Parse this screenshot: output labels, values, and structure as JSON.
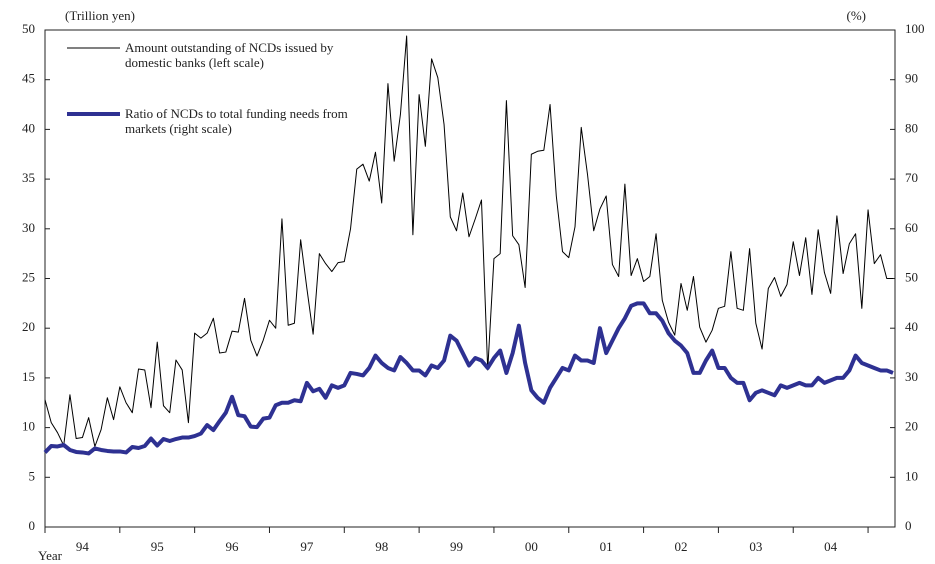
{
  "chart_data": {
    "type": "line",
    "y_label": "(Trillion yen)",
    "y2_label": "(%)",
    "x_label": "Year",
    "categories": [
      null,
      null,
      null,
      null,
      null,
      null,
      "94",
      null,
      null,
      null,
      null,
      null,
      null,
      null,
      null,
      null,
      null,
      null,
      "95",
      null,
      null,
      null,
      null,
      null,
      null,
      null,
      null,
      null,
      null,
      null,
      "96",
      null,
      null,
      null,
      null,
      null,
      null,
      null,
      null,
      null,
      null,
      null,
      "97",
      null,
      null,
      null,
      null,
      null,
      null,
      null,
      null,
      null,
      null,
      null,
      "98",
      null,
      null,
      null,
      null,
      null,
      null,
      null,
      null,
      null,
      null,
      null,
      "99",
      null,
      null,
      null,
      null,
      null,
      null,
      null,
      null,
      null,
      null,
      null,
      "00",
      null,
      null,
      null,
      null,
      null,
      null,
      null,
      null,
      null,
      null,
      null,
      "01",
      null,
      null,
      null,
      null,
      null,
      null,
      null,
      null,
      null,
      null,
      null,
      "02",
      null,
      null,
      null,
      null,
      null,
      null,
      null,
      null,
      null,
      null,
      null,
      "03",
      null,
      null,
      null,
      null,
      null,
      null,
      null,
      null,
      null,
      null,
      null,
      "04",
      null,
      null,
      null,
      null,
      null,
      null,
      null,
      null,
      null,
      null
    ],
    "series": [
      {
        "name": "Amount outstanding of NCDs issued by domestic banks (left scale)",
        "color": "#000000",
        "axis": "y",
        "values": [
          12.8,
          10.5,
          9.5,
          8.2,
          13.3,
          8.9,
          9.0,
          11.0,
          8.1,
          9.8,
          13.0,
          10.8,
          14.1,
          12.5,
          11.5,
          15.9,
          15.8,
          12.0,
          18.6,
          12.2,
          11.5,
          16.8,
          15.8,
          10.5,
          19.5,
          19.0,
          19.5,
          21.0,
          17.5,
          17.6,
          19.7,
          19.6,
          23.0,
          18.8,
          17.2,
          18.8,
          20.8,
          20.0,
          31.0,
          20.3,
          20.5,
          28.9,
          24.0,
          19.4,
          27.5,
          26.5,
          25.7,
          26.6,
          26.7,
          30.0,
          36.0,
          36.5,
          34.8,
          37.7,
          32.6,
          44.6,
          36.8,
          41.5,
          49.4,
          29.4,
          43.5,
          38.3,
          47.1,
          45.2,
          40.5,
          31.2,
          29.8,
          33.6,
          29.2,
          31.0,
          32.9,
          15.8,
          27.0,
          27.5,
          42.9,
          29.3,
          28.4,
          24.1,
          37.5,
          37.8,
          37.9,
          42.5,
          33.3,
          27.7,
          27.1,
          30.2,
          40.2,
          35.5,
          29.8,
          32.0,
          33.3,
          26.4,
          25.2,
          34.5,
          25.3,
          27.0,
          24.7,
          25.2,
          29.5,
          22.8,
          20.6,
          19.3,
          24.5,
          21.8,
          25.2,
          20.1,
          18.6,
          19.8,
          22.0,
          22.2,
          27.7,
          22.0,
          21.8,
          28.0,
          20.5,
          17.9,
          24.0,
          25.1,
          23.2,
          24.4,
          28.7,
          25.3,
          29.1,
          23.4,
          29.9,
          25.6,
          23.5,
          31.3,
          25.5,
          28.5,
          29.5,
          22.0,
          31.9,
          26.5,
          27.4,
          25.0,
          25.0
        ]
      },
      {
        "name": "Ratio of NCDs to total funding needs from markets (right scale)",
        "color": "#2e3192",
        "axis": "y2",
        "values": [
          15.0,
          16.3,
          16.2,
          16.5,
          15.5,
          15.1,
          15.0,
          14.8,
          15.8,
          15.5,
          15.3,
          15.2,
          15.2,
          15.0,
          16.1,
          15.9,
          16.3,
          17.8,
          16.4,
          17.7,
          17.3,
          17.7,
          18.0,
          18.0,
          18.3,
          18.8,
          20.5,
          19.5,
          21.3,
          23.0,
          26.2,
          22.5,
          22.3,
          20.2,
          20.1,
          21.8,
          22.0,
          24.5,
          25.0,
          25.0,
          25.5,
          25.3,
          29.0,
          27.3,
          27.8,
          26.0,
          28.5,
          28.0,
          28.5,
          31.0,
          30.8,
          30.5,
          32.0,
          34.5,
          33.0,
          32.0,
          31.5,
          34.2,
          33.0,
          31.5,
          31.5,
          30.5,
          32.5,
          32.0,
          33.5,
          38.5,
          37.5,
          35.0,
          32.5,
          34.0,
          33.5,
          32.0,
          34.0,
          35.5,
          31.0,
          35.0,
          40.5,
          33.0,
          27.5,
          26.0,
          25.0,
          28.0,
          30.0,
          32.0,
          31.5,
          34.5,
          33.5,
          33.5,
          33.0,
          40.0,
          35.0,
          37.5,
          40.0,
          42.0,
          44.5,
          45.0,
          45.0,
          43.0,
          43.0,
          41.5,
          39.0,
          37.5,
          36.5,
          35.0,
          31.0,
          31.0,
          33.5,
          35.5,
          32.0,
          32.0,
          30.0,
          29.0,
          29.0,
          25.5,
          27.0,
          27.5,
          27.0,
          26.5,
          28.5,
          28.0,
          28.5,
          29.0,
          28.5,
          28.5,
          30.0,
          29.0,
          29.5,
          30.0,
          30.0,
          31.5,
          34.5,
          33.0,
          32.5,
          32.0,
          31.5,
          31.5,
          31.0
        ]
      }
    ],
    "ylim": [
      0,
      50
    ],
    "yticks": [
      0,
      5,
      10,
      15,
      20,
      25,
      30,
      35,
      40,
      45,
      50
    ],
    "y2lim": [
      0,
      100
    ],
    "y2ticks": [
      0,
      10,
      20,
      30,
      40,
      50,
      60,
      70,
      80,
      90,
      100
    ],
    "grid": false
  }
}
